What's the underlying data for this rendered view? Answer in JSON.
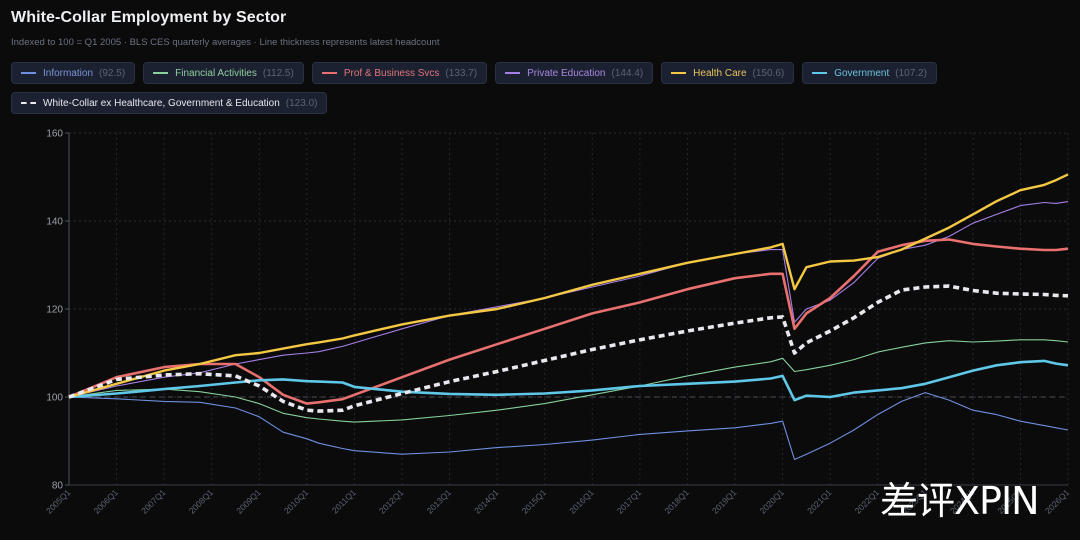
{
  "header": {
    "title": "White-Collar Employment by Sector",
    "subtitle": "Indexed to 100 = Q1 2005 · BLS CES quarterly averages · Line thickness represents latest headcount"
  },
  "legend": [
    {
      "label": "Information",
      "value": "(92.5)",
      "color": "#6f8fe0",
      "text_color": "#7b93d6"
    },
    {
      "label": "Financial Activities",
      "value": "(112.5)",
      "color": "#86d19a",
      "text_color": "#8fcf9f"
    },
    {
      "label": "Prof & Business Svcs",
      "value": "(133.7)",
      "color": "#e8706e",
      "text_color": "#e0757a"
    },
    {
      "label": "Private Education",
      "value": "(144.4)",
      "color": "#a77fe6",
      "text_color": "#a987e0"
    },
    {
      "label": "Health Care",
      "value": "(150.6)",
      "color": "#f4c842",
      "text_color": "#e9c45a"
    },
    {
      "label": "Government",
      "value": "(107.2)",
      "color": "#5fc8e8",
      "text_color": "#6cc0dc"
    },
    {
      "label": "White-Collar ex Healthcare, Government & Education",
      "value": "(123.0)",
      "color": "#e8e8ee",
      "text_color": "#e8e8ee",
      "dashed": true
    }
  ],
  "watermark": "差评XPIN",
  "chart_data": {
    "type": "line",
    "title": "White-Collar Employment by Sector",
    "xlabel": "",
    "ylabel": "",
    "ylim": [
      80,
      160
    ],
    "yticks": [
      "80",
      "100",
      "120",
      "140",
      "160"
    ],
    "x_tick_labels": [
      "2005Q1",
      "2006Q1",
      "2007Q1",
      "2008Q1",
      "2009Q1",
      "2010Q1",
      "2011Q1",
      "2012Q1",
      "2013Q1",
      "2014Q1",
      "2015Q1",
      "2016Q1",
      "2017Q1",
      "2018Q1",
      "2019Q1",
      "2020Q1",
      "2021Q1",
      "2022Q1",
      "2023Q1",
      "2024Q1",
      "2025Q1",
      "2026Q1"
    ],
    "xlim": [
      2005.0,
      2026.0
    ],
    "reference_line": 100,
    "grid": true,
    "x": [
      2005.0,
      2006.0,
      2007.0,
      2007.75,
      2008.5,
      2009.0,
      2009.5,
      2010.0,
      2010.25,
      2010.75,
      2011.0,
      2012.0,
      2013.0,
      2014.0,
      2015.0,
      2016.0,
      2017.0,
      2018.0,
      2019.0,
      2019.75,
      2020.0,
      2020.25,
      2020.5,
      2021.0,
      2021.5,
      2022.0,
      2022.5,
      2023.0,
      2023.5,
      2024.0,
      2024.5,
      2025.0,
      2025.5,
      2025.75,
      2026.0
    ],
    "series": [
      {
        "name": "Information",
        "width": 1.1,
        "values": [
          100,
          99.6,
          99.0,
          98.8,
          97.5,
          95.5,
          92.0,
          90.5,
          89.5,
          88.3,
          87.8,
          87.0,
          87.5,
          88.5,
          89.2,
          90.2,
          91.5,
          92.3,
          93.0,
          94.0,
          94.5,
          85.8,
          87.0,
          89.5,
          92.5,
          96.0,
          99.0,
          101.0,
          99.3,
          97.0,
          96.0,
          94.5,
          93.5,
          93.0,
          92.5
        ]
      },
      {
        "name": "Financial Activities",
        "width": 1.1,
        "values": [
          100,
          101.5,
          101.8,
          101.2,
          100.0,
          98.5,
          96.3,
          95.3,
          95.0,
          94.5,
          94.3,
          94.8,
          95.8,
          97.0,
          98.5,
          100.5,
          102.5,
          104.8,
          106.8,
          108.0,
          108.8,
          105.8,
          106.2,
          107.2,
          108.5,
          110.2,
          111.3,
          112.3,
          112.8,
          112.5,
          112.7,
          113.0,
          113.0,
          112.8,
          112.5
        ]
      },
      {
        "name": "Prof & Business Svcs",
        "width": 2.6,
        "values": [
          100,
          104.5,
          106.8,
          107.5,
          107.5,
          104.5,
          100.5,
          98.5,
          98.8,
          99.5,
          100.5,
          104.5,
          108.5,
          112.0,
          115.5,
          119.0,
          121.5,
          124.5,
          127.0,
          128.0,
          128.0,
          115.5,
          119.0,
          122.5,
          127.5,
          133.0,
          134.5,
          135.5,
          135.8,
          134.8,
          134.2,
          133.7,
          133.4,
          133.4,
          133.7
        ]
      },
      {
        "name": "Private Education",
        "width": 1.1,
        "values": [
          100,
          102.5,
          104.5,
          105.5,
          107.5,
          108.5,
          109.5,
          110.0,
          110.3,
          111.5,
          112.3,
          115.5,
          118.5,
          120.5,
          122.5,
          125.0,
          127.5,
          130.5,
          132.5,
          133.5,
          133.5,
          117.0,
          120.0,
          122.0,
          126.0,
          131.5,
          133.5,
          134.5,
          136.5,
          139.5,
          141.5,
          143.5,
          144.2,
          144.0,
          144.4
        ]
      },
      {
        "name": "Health Care",
        "width": 2.4,
        "values": [
          100,
          103.0,
          106.0,
          107.5,
          109.5,
          110.0,
          111.0,
          112.0,
          112.4,
          113.3,
          114.0,
          116.5,
          118.5,
          120.0,
          122.5,
          125.5,
          128.0,
          130.5,
          132.5,
          134.0,
          134.8,
          124.5,
          129.5,
          130.8,
          131.0,
          131.8,
          133.5,
          136.0,
          138.5,
          141.5,
          144.5,
          147.0,
          148.2,
          149.3,
          150.6
        ]
      },
      {
        "name": "Government",
        "width": 2.6,
        "values": [
          100,
          100.8,
          101.8,
          102.5,
          103.3,
          103.8,
          104.0,
          103.6,
          103.5,
          103.3,
          102.3,
          101.2,
          100.7,
          100.5,
          100.8,
          101.5,
          102.5,
          103.0,
          103.5,
          104.2,
          104.8,
          99.3,
          100.3,
          100.0,
          101.0,
          101.5,
          102.0,
          103.0,
          104.5,
          106.0,
          107.2,
          107.9,
          108.2,
          107.6,
          107.2
        ]
      },
      {
        "name": "White-Collar ex Healthcare, Government & Education",
        "width": 3.6,
        "dashed": true,
        "values": [
          100,
          104.0,
          105.0,
          105.3,
          104.8,
          102.5,
          99.0,
          97.0,
          96.8,
          97.0,
          98.0,
          100.8,
          103.5,
          105.8,
          108.3,
          110.8,
          113.0,
          115.0,
          116.8,
          118.0,
          118.2,
          110.0,
          112.3,
          115.0,
          118.0,
          121.5,
          124.3,
          125.0,
          125.2,
          124.2,
          123.6,
          123.4,
          123.3,
          123.1,
          123.0
        ]
      }
    ]
  }
}
